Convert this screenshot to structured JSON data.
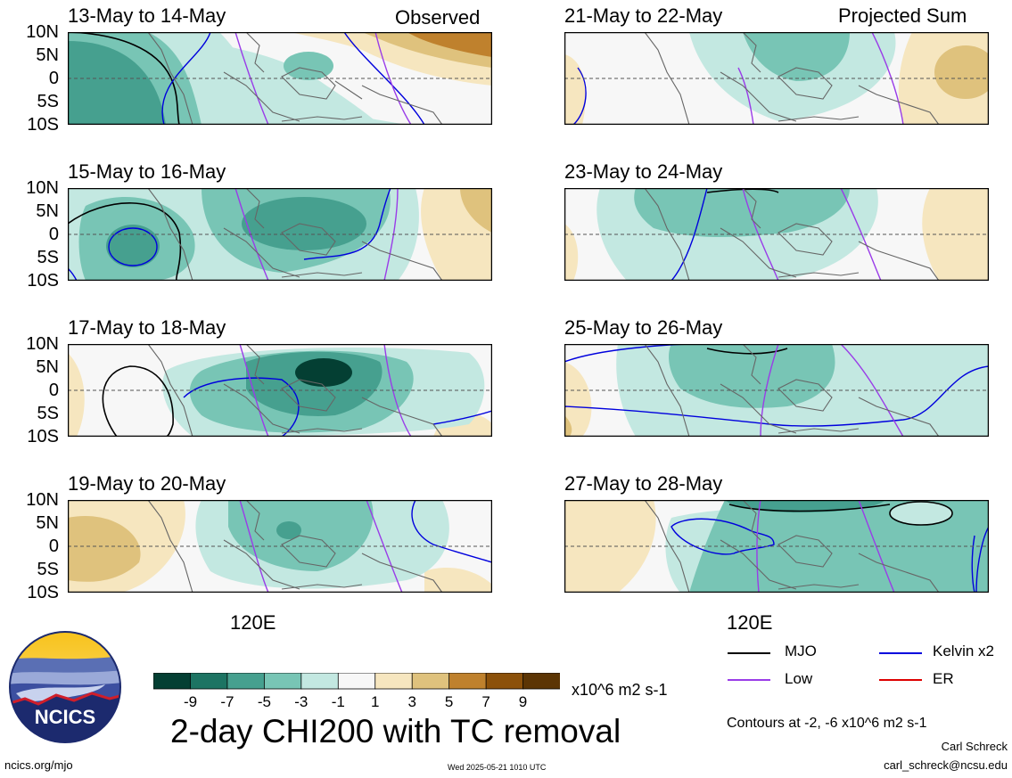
{
  "panels": [
    {
      "id": "p1",
      "title": "13-May to 14-May",
      "label": "Observed"
    },
    {
      "id": "p2",
      "title": "21-May to 22-May",
      "label": "Projected Sum"
    },
    {
      "id": "p3",
      "title": "15-May to 16-May",
      "label": ""
    },
    {
      "id": "p4",
      "title": "23-May to 24-May",
      "label": ""
    },
    {
      "id": "p5",
      "title": "17-May to 18-May",
      "label": ""
    },
    {
      "id": "p6",
      "title": "25-May to 26-May",
      "label": ""
    },
    {
      "id": "p7",
      "title": "19-May to 20-May",
      "label": ""
    },
    {
      "id": "p8",
      "title": "27-May to 28-May",
      "label": ""
    }
  ],
  "lat_labels": [
    "10N",
    "5N",
    "0",
    "5S",
    "10S"
  ],
  "lon_label": "120E",
  "colorbar": {
    "ticks": [
      "-9",
      "-7",
      "-5",
      "-3",
      "-1",
      "1",
      "3",
      "5",
      "7",
      "9"
    ],
    "unit": "x10^6 m2 s-1",
    "colors": [
      "#043f33",
      "#1d7463",
      "#46a08f",
      "#78c5b5",
      "#c3e8e1",
      "#f7f7f7",
      "#f6e6bf",
      "#dfc27d",
      "#bf812d",
      "#8c510a",
      "#5c3504"
    ]
  },
  "legend": {
    "mjo": "MJO",
    "kelvin": "Kelvin x2",
    "low": "Low",
    "er": "ER",
    "colors": {
      "mjo": "#000000",
      "kelvin": "#0000dd",
      "low": "#9a3ce8",
      "er": "#dd0000"
    }
  },
  "contour_note": "Contours at -2, -6 x10^6 m2 s-1",
  "main_title": "2-day CHI200 with TC removal",
  "logo_text": "NCICS",
  "footer": {
    "url": "ncics.org/mjo",
    "timestamp": "Wed 2025-05-21 1010 UTC",
    "author": "Carl Schreck",
    "email": "carl_schreck@ncsu.edu"
  }
}
